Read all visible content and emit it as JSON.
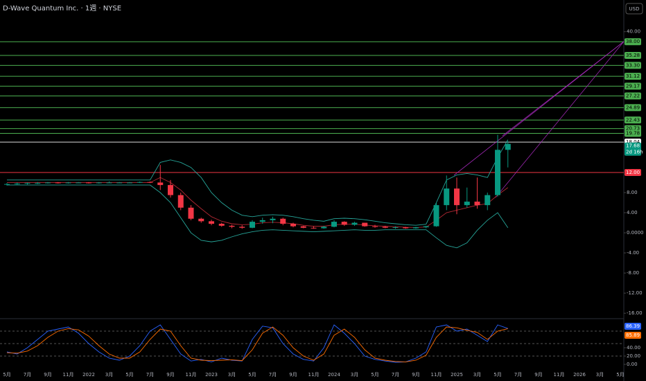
{
  "chart_data": {
    "type": "candlestick",
    "title": "D-Wave Quantum Inc. · 1週 · NYSE",
    "currency": "USD",
    "categories": [
      "5月",
      "7月",
      "9月",
      "11月",
      "2022",
      "3月",
      "5月",
      "7月",
      "9月",
      "11月",
      "2023",
      "3月",
      "5月",
      "7月",
      "9月",
      "11月",
      "2024",
      "3月",
      "5月",
      "7月",
      "9月",
      "11月",
      "2025",
      "3月",
      "5月",
      "7月",
      "9月",
      "11月",
      "2026",
      "3月",
      "5月"
    ],
    "candles": [
      [
        9.6,
        9.9,
        9.4,
        9.7
      ],
      [
        9.7,
        10,
        9.5,
        9.8
      ],
      [
        9.8,
        10,
        9.6,
        9.9
      ],
      [
        9.9,
        10.1,
        9.7,
        9.9
      ],
      [
        9.9,
        10.1,
        9.8,
        10
      ],
      [
        10,
        10.1,
        9.8,
        9.9
      ],
      [
        9.9,
        10.1,
        9.8,
        10
      ],
      [
        10,
        10.1,
        9.9,
        10
      ],
      [
        10,
        10.1,
        9.8,
        9.9
      ],
      [
        9.9,
        10.1,
        9.8,
        10
      ],
      [
        10,
        10.2,
        9.9,
        10
      ],
      [
        10,
        10.1,
        9.9,
        10
      ],
      [
        10,
        10.1,
        9.9,
        10
      ],
      [
        10,
        10.2,
        9.9,
        10.1
      ],
      [
        10.1,
        10.2,
        9.9,
        10
      ],
      [
        10,
        13.5,
        8.5,
        9.5
      ],
      [
        9.5,
        10.5,
        7,
        7.5
      ],
      [
        7.5,
        8,
        4.5,
        5
      ],
      [
        5,
        5.5,
        2.5,
        2.8
      ],
      [
        2.8,
        3,
        2,
        2.3
      ],
      [
        2.3,
        2.6,
        1.5,
        1.8
      ],
      [
        1.8,
        2,
        1.2,
        1.4
      ],
      [
        1.4,
        1.6,
        0.9,
        1.2
      ],
      [
        1.2,
        1.5,
        0.8,
        1
      ],
      [
        1,
        2.5,
        0.9,
        2.2
      ],
      [
        2.2,
        3,
        1.8,
        2.5
      ],
      [
        2.5,
        3.2,
        1.9,
        2.8
      ],
      [
        2.8,
        3,
        1.5,
        1.8
      ],
      [
        1.8,
        2,
        1.1,
        1.3
      ],
      [
        1.3,
        1.4,
        0.9,
        1
      ],
      [
        1,
        1.3,
        0.8,
        0.9
      ],
      [
        0.9,
        1.4,
        0.8,
        1.2
      ],
      [
        1.2,
        2.5,
        1.1,
        2.2
      ],
      [
        2.2,
        2.3,
        1.4,
        1.6
      ],
      [
        1.6,
        2.2,
        1.4,
        2
      ],
      [
        2,
        2,
        1.2,
        1.3
      ],
      [
        1.3,
        1.6,
        1,
        1.2
      ],
      [
        1.2,
        1.4,
        0.9,
        1
      ],
      [
        1,
        1.3,
        0.8,
        1.1
      ],
      [
        1.1,
        1.2,
        0.8,
        0.9
      ],
      [
        0.9,
        1.2,
        0.8,
        1.1
      ],
      [
        1.1,
        1.4,
        0.9,
        1.3
      ],
      [
        1.3,
        6,
        1.2,
        5.5
      ],
      [
        5.5,
        11.4,
        4.5,
        8.8
      ],
      [
        8.8,
        11,
        3.7,
        5.5
      ],
      [
        5.5,
        9,
        5,
        6.2
      ],
      [
        6.2,
        11,
        4.8,
        5.5
      ],
      [
        5.5,
        8,
        4.5,
        7.5
      ],
      [
        7.5,
        19.5,
        7.2,
        16.5
      ],
      [
        16.5,
        18.2,
        13,
        17.68
      ]
    ],
    "up_color": "#089981",
    "down_color": "#f23645",
    "bands": {
      "upper": [
        10.5,
        10.5,
        10.5,
        10.5,
        10.5,
        10.5,
        10.5,
        10.5,
        10.5,
        10.5,
        10.5,
        10.5,
        10.5,
        10.5,
        10.5,
        14,
        14.5,
        14,
        13,
        11,
        8,
        6,
        4.5,
        3.5,
        3.2,
        3.5,
        3.6,
        3.5,
        3.2,
        2.8,
        2.5,
        2.3,
        2.8,
        2.9,
        2.8,
        2.6,
        2.3,
        2,
        1.8,
        1.6,
        1.5,
        1.7,
        6,
        10.5,
        11.5,
        11.8,
        11.5,
        11,
        15,
        18.5
      ],
      "middle": [
        10,
        10,
        10,
        10,
        10,
        10,
        10,
        10,
        10,
        10,
        10,
        10,
        10,
        10,
        10,
        11,
        10,
        8.5,
        6.5,
        4.8,
        3.2,
        2.3,
        1.8,
        1.6,
        1.7,
        2,
        2.1,
        2,
        1.8,
        1.5,
        1.3,
        1.3,
        1.6,
        1.7,
        1.7,
        1.55,
        1.4,
        1.3,
        1.2,
        1.1,
        1.05,
        1.15,
        2.5,
        4,
        4.5,
        5,
        5.5,
        5.8,
        7.5,
        9
      ],
      "lower": [
        9.5,
        9.5,
        9.5,
        9.5,
        9.5,
        9.5,
        9.5,
        9.5,
        9.5,
        9.5,
        9.5,
        9.5,
        9.5,
        9.5,
        9.5,
        8,
        6,
        3,
        0,
        -1.5,
        -1.8,
        -1.5,
        -0.8,
        -0.2,
        0.2,
        0.5,
        0.6,
        0.5,
        0.4,
        0.3,
        0.2,
        0.3,
        0.4,
        0.5,
        0.6,
        0.5,
        0.5,
        0.6,
        0.6,
        0.6,
        0.6,
        0.6,
        -1,
        -2.5,
        -3,
        -2,
        0.5,
        2.5,
        4,
        1
      ],
      "band_color": "#26a69a",
      "middle_color": "#b22833"
    },
    "ylim": [
      -16.8,
      46.3
    ],
    "yticks": [
      {
        "value": 40,
        "label": "40.00"
      },
      {
        "value": 8,
        "label": "8.00"
      },
      {
        "value": 4,
        "label": "4.00"
      },
      {
        "value": 0,
        "label": "0.0000"
      },
      {
        "value": -4,
        "label": "-4.00"
      },
      {
        "value": -8,
        "label": "-8.00"
      },
      {
        "value": -12,
        "label": "-12.00"
      },
      {
        "value": -16,
        "label": "-16.00"
      }
    ],
    "levels": [
      {
        "value": 38,
        "label": "38.00"
      },
      {
        "value": 35.28,
        "label": "35.28"
      },
      {
        "value": 33.3,
        "label": "33.30"
      },
      {
        "value": 31.12,
        "label": "31.12"
      },
      {
        "value": 29.17,
        "label": "29.17"
      },
      {
        "value": 27.22,
        "label": "27.22"
      },
      {
        "value": 24.89,
        "label": "24.89"
      },
      {
        "value": 22.43,
        "label": "22.43"
      },
      {
        "value": 20.73,
        "label": "20.73"
      },
      {
        "value": 19.78,
        "label": "19.78"
      }
    ],
    "level_color": "#4caf50",
    "high_line": 18.04,
    "support": {
      "value": 12,
      "label": "12.00",
      "color": "#f23645"
    },
    "countdown": "2d 16h",
    "oscillator": {
      "ylim": [
        -10,
        110
      ],
      "yticks": [
        {
          "value": 0,
          "label": "0.00"
        },
        {
          "value": 20,
          "label": "20.00"
        },
        {
          "value": 40,
          "label": "40.00"
        }
      ],
      "levels": [
        80,
        50,
        20
      ],
      "series": [
        {
          "color": "#2962ff",
          "values": [
            30,
            25,
            40,
            60,
            80,
            85,
            90,
            75,
            50,
            30,
            15,
            10,
            20,
            45,
            80,
            95,
            60,
            25,
            8,
            12,
            6,
            15,
            10,
            8,
            60,
            92,
            88,
            50,
            25,
            12,
            8,
            40,
            95,
            75,
            50,
            20,
            12,
            8,
            5,
            6,
            15,
            30,
            90,
            95,
            80,
            85,
            70,
            55,
            95,
            86.39
          ]
        },
        {
          "color": "#ff6d00",
          "values": [
            28,
            27,
            32,
            45,
            65,
            80,
            86,
            83,
            68,
            45,
            25,
            15,
            15,
            30,
            60,
            85,
            80,
            45,
            15,
            10,
            9,
            10,
            11,
            9,
            35,
            75,
            90,
            70,
            40,
            20,
            10,
            25,
            70,
            85,
            65,
            35,
            15,
            10,
            7,
            6,
            10,
            22,
            65,
            90,
            88,
            82,
            77,
            60,
            80,
            85.89
          ]
        }
      ]
    }
  }
}
